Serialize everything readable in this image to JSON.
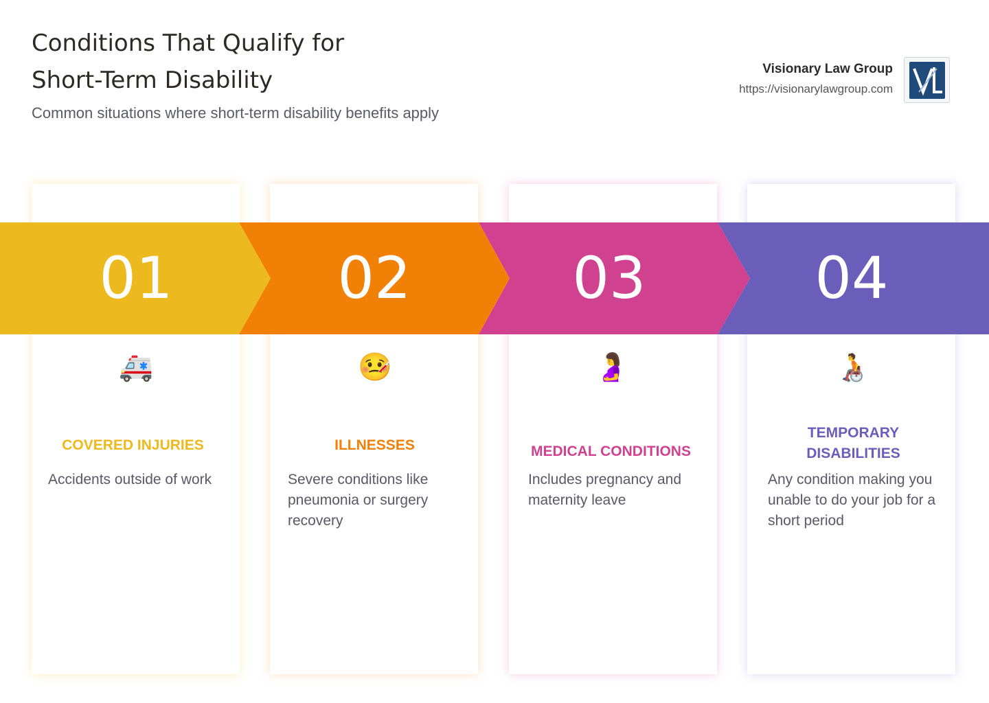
{
  "header": {
    "title": "Conditions That Qualify for Short-Term Disability",
    "subtitle": "Common situations where short-term disability benefits apply"
  },
  "brand": {
    "name": "Visionary Law Group",
    "url": "https://visionarylawgroup.com"
  },
  "colors": {
    "step1": "#ecb91e",
    "step2": "#f08006",
    "step3": "#d04290",
    "step4": "#6a5eba"
  },
  "steps": [
    {
      "number": "01",
      "icon": "ambulance-icon",
      "glyph": "🚑",
      "title": "COVERED INJURIES",
      "description": "Accidents outside of work"
    },
    {
      "number": "02",
      "icon": "face-with-thermometer-icon",
      "glyph": "🤒",
      "title": "ILLNESSES",
      "description": "Severe conditions like pneumonia or surgery recovery"
    },
    {
      "number": "03",
      "icon": "pregnant-woman-icon",
      "glyph": "🤰",
      "title": "MEDICAL CONDITIONS",
      "description": "Includes pregnancy and maternity leave"
    },
    {
      "number": "04",
      "icon": "wheelchair-person-icon",
      "glyph": "🧑‍🦽",
      "title": "TEMPORARY DISABILITIES",
      "description": "Any condition making you unable to do your job for a short period"
    }
  ]
}
